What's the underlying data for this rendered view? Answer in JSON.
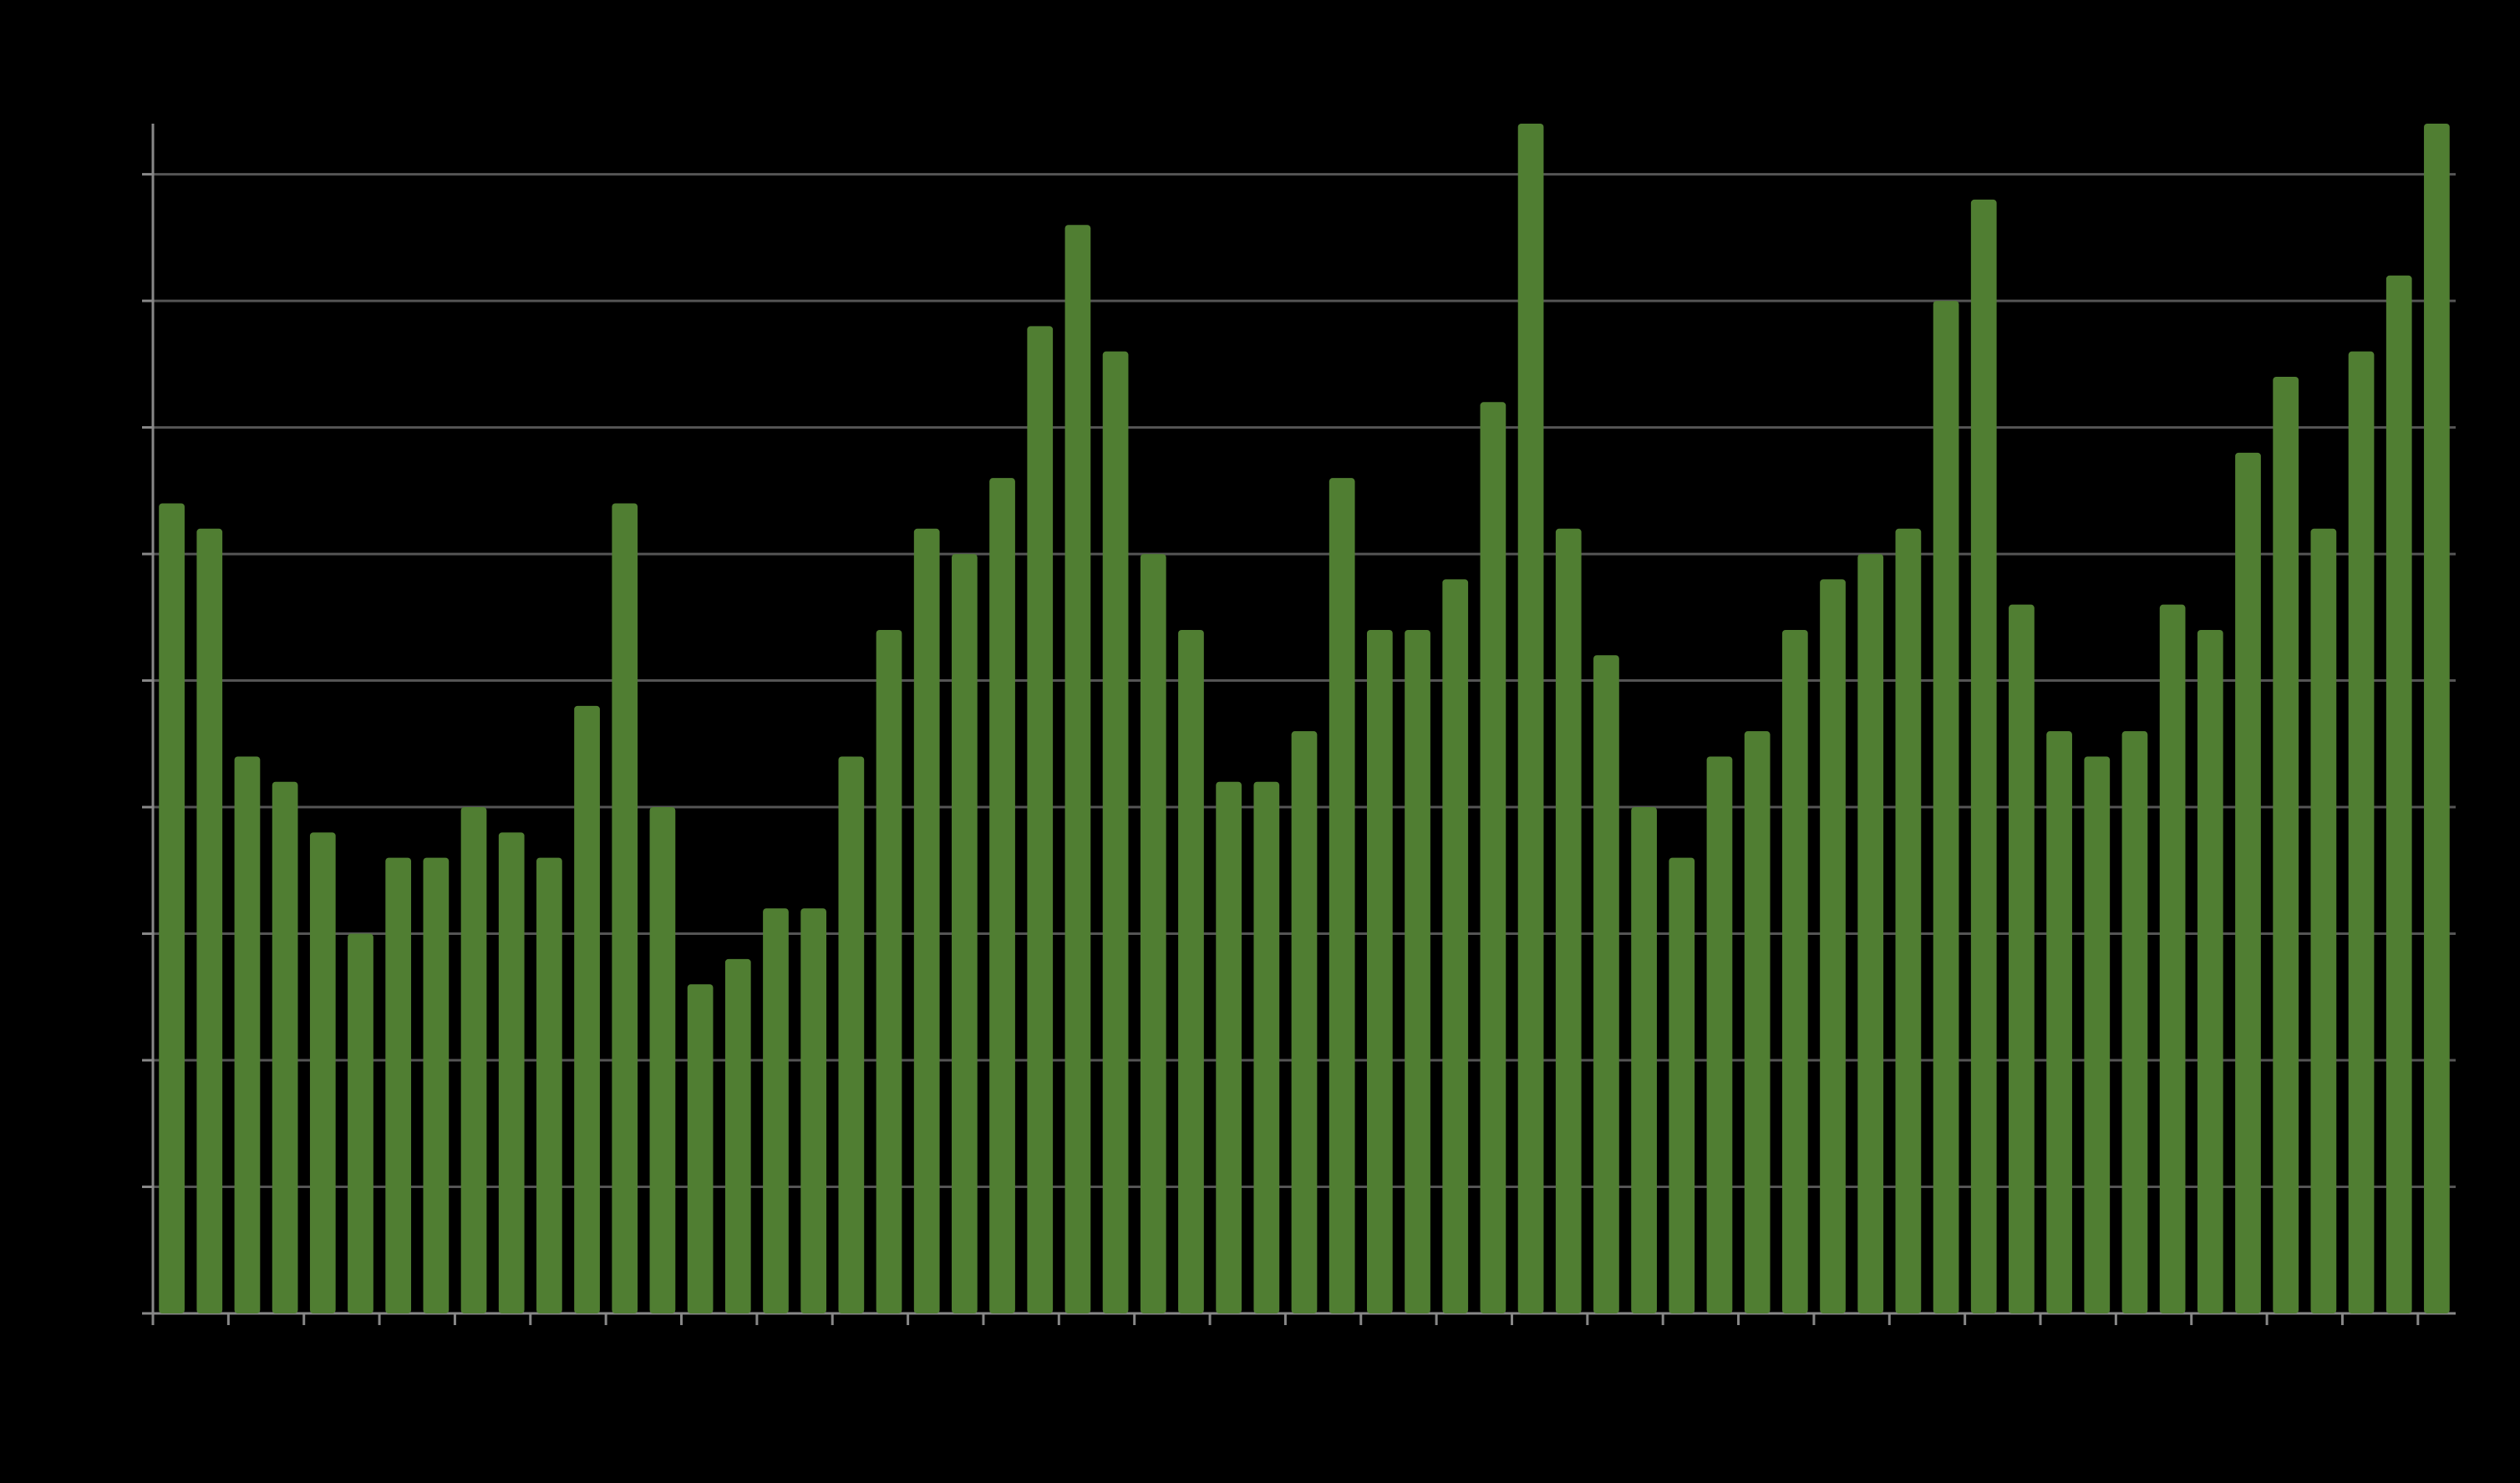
{
  "chart_data": {
    "type": "bar",
    "categories": [
      null,
      null,
      null,
      null,
      null,
      null,
      null,
      null,
      null,
      null,
      null,
      null,
      null,
      null,
      null,
      null,
      null,
      null,
      null,
      null,
      null,
      null,
      null,
      null,
      null,
      null,
      null,
      null,
      null,
      null,
      null,
      null,
      null,
      null,
      null,
      null,
      null,
      null,
      null,
      null,
      null,
      null,
      null,
      null,
      null,
      null,
      null,
      null,
      null,
      null,
      null,
      null,
      null,
      null,
      null,
      null,
      null,
      null,
      null,
      null,
      null
    ],
    "values": [
      6.4,
      6.2,
      4.4,
      4.2,
      3.8,
      3.0,
      3.6,
      3.6,
      4.0,
      3.8,
      3.6,
      4.8,
      6.4,
      4.0,
      2.6,
      2.8,
      3.2,
      3.2,
      4.4,
      5.4,
      6.2,
      6.0,
      6.6,
      7.8,
      8.6,
      7.6,
      6.0,
      5.4,
      4.2,
      4.2,
      4.6,
      6.6,
      5.4,
      5.4,
      5.8,
      7.2,
      9.4,
      6.2,
      5.2,
      4.0,
      3.6,
      4.4,
      4.6,
      5.4,
      5.8,
      6.0,
      6.2,
      8.0,
      8.8,
      5.6,
      4.6,
      4.4,
      4.6,
      5.6,
      5.4,
      6.8,
      7.4,
      6.2,
      7.6,
      8.2,
      9.4
    ],
    "color": "#507e32",
    "ylim": [
      0,
      9.4
    ],
    "yticks": [
      0,
      1,
      2,
      3,
      4,
      5,
      6,
      7,
      8,
      9
    ],
    "grid": true
  }
}
